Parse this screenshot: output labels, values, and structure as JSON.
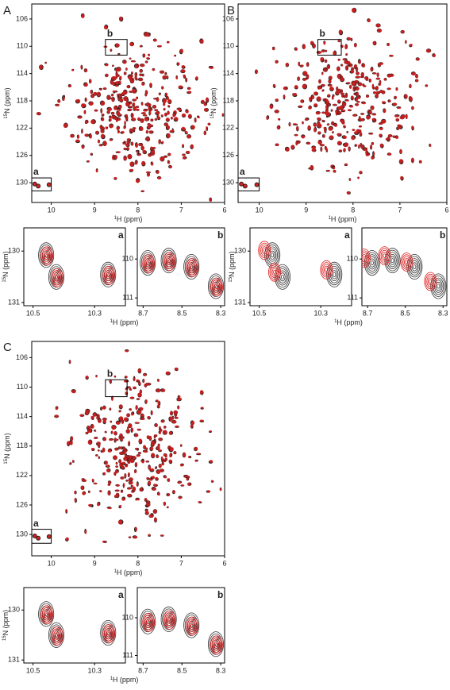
{
  "panels": [
    {
      "label": "A",
      "main": {
        "xlim": [
          10.45,
          6.0
        ],
        "ylim": [
          103.8,
          132.9
        ],
        "xticks": [
          10,
          9,
          8,
          7,
          6
        ],
        "yticks": [
          106,
          110,
          114,
          118,
          122,
          126,
          130
        ],
        "x_label": {
          "sup": "1",
          "text": "H (ppm)"
        },
        "y_label": {
          "sup": "15",
          "text": "N (ppm)"
        },
        "box_labels": [
          "a",
          "b"
        ]
      },
      "insets": [
        {
          "label": "a",
          "xlim": [
            10.53,
            10.2
          ],
          "ylim": [
            129.55,
            131.06
          ],
          "xticks": [
            10.5,
            10.3
          ],
          "yticks": [
            130,
            131
          ],
          "y_label": {
            "sup": "15",
            "text": "N (ppm)"
          }
        },
        {
          "label": "b",
          "xlim": [
            8.73,
            8.28
          ],
          "ylim": [
            109.2,
            111.2
          ],
          "xticks": [
            8.7,
            8.5,
            8.3
          ],
          "yticks": [
            110,
            111
          ]
        }
      ],
      "inset_x_label": {
        "sup": "1",
        "text": "H (ppm)"
      }
    },
    {
      "label": "B",
      "main": {
        "xlim": [
          10.45,
          6.0
        ],
        "ylim": [
          103.8,
          132.9
        ],
        "xticks": [
          10,
          9,
          8,
          7,
          6
        ],
        "yticks": [
          106,
          110,
          114,
          118,
          122,
          126,
          130
        ],
        "x_label": {
          "sup": "1",
          "text": "H (ppm)"
        },
        "y_label": {
          "sup": "15",
          "text": "N (ppm)"
        },
        "box_labels": [
          "a",
          "b"
        ]
      },
      "insets": [
        {
          "label": "a",
          "xlim": [
            10.53,
            10.2
          ],
          "ylim": [
            129.55,
            131.06
          ],
          "xticks": [
            10.5,
            10.3
          ],
          "yticks": [
            130,
            131
          ],
          "y_label": {
            "sup": "15",
            "text": "N (ppm)"
          }
        },
        {
          "label": "b",
          "xlim": [
            8.73,
            8.28
          ],
          "ylim": [
            109.2,
            111.2
          ],
          "xticks": [
            8.7,
            8.5,
            8.3
          ],
          "yticks": [
            110,
            111
          ]
        }
      ],
      "inset_x_label": {
        "sup": "1",
        "text": "H (ppm)"
      }
    },
    {
      "label": "C",
      "main": {
        "xlim": [
          10.45,
          6.0
        ],
        "ylim": [
          103.8,
          132.9
        ],
        "xticks": [
          10,
          9,
          8,
          7,
          6
        ],
        "yticks": [
          106,
          110,
          114,
          118,
          122,
          126,
          130
        ],
        "x_label": {
          "sup": "1",
          "text": "H (ppm)"
        },
        "y_label": {
          "sup": "15",
          "text": "N (ppm)"
        },
        "box_labels": [
          "a",
          "b"
        ]
      },
      "insets": [
        {
          "label": "a",
          "xlim": [
            10.53,
            10.2
          ],
          "ylim": [
            129.55,
            131.06
          ],
          "xticks": [
            10.5,
            10.3
          ],
          "yticks": [
            130,
            131
          ],
          "y_label": {
            "sup": "15",
            "text": "N (ppm)"
          }
        },
        {
          "label": "b",
          "xlim": [
            8.73,
            8.28
          ],
          "ylim": [
            109.2,
            111.2
          ],
          "xticks": [
            8.7,
            8.5,
            8.3
          ],
          "yticks": [
            110,
            111
          ]
        }
      ],
      "inset_x_label": {
        "sup": "1",
        "text": "H (ppm)"
      }
    }
  ]
}
